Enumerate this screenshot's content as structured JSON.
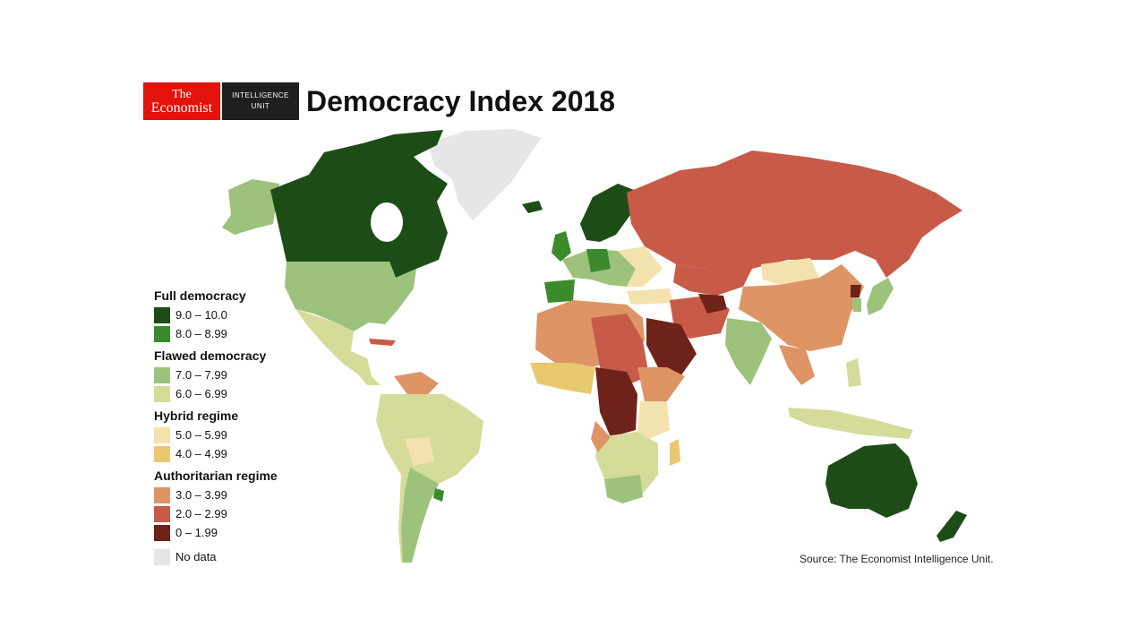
{
  "header": {
    "logo_economist_line1": "The",
    "logo_economist_line2": "Economist",
    "logo_eiu_line1": "INTELLIGENCE",
    "logo_eiu_line2": "UNIT",
    "title": "Democracy Index 2018"
  },
  "legend": {
    "groups": [
      {
        "title": "Full democracy",
        "items": [
          {
            "label": "9.0 – 10.0",
            "color": "#1d4d16"
          },
          {
            "label": "8.0 – 8.99",
            "color": "#3b8a2c"
          }
        ]
      },
      {
        "title": "Flawed democracy",
        "items": [
          {
            "label": "7.0 – 7.99",
            "color": "#9dc27c"
          },
          {
            "label": "6.0 – 6.99",
            "color": "#d5dc9a"
          }
        ]
      },
      {
        "title": "Hybrid regime",
        "items": [
          {
            "label": "5.0 – 5.99",
            "color": "#f3e2ad"
          },
          {
            "label": "4.0 – 4.99",
            "color": "#e9c96f"
          }
        ]
      },
      {
        "title": "Authoritarian regime",
        "items": [
          {
            "label": "3.0 – 3.99",
            "color": "#de9464"
          },
          {
            "label": "2.0 – 2.99",
            "color": "#c85b48"
          },
          {
            "label": "0 – 1.99",
            "color": "#6e2219"
          }
        ]
      }
    ],
    "no_data": {
      "label": "No data",
      "color": "#e6e6e9"
    }
  },
  "source": "Source: The Economist Intelligence Unit."
}
